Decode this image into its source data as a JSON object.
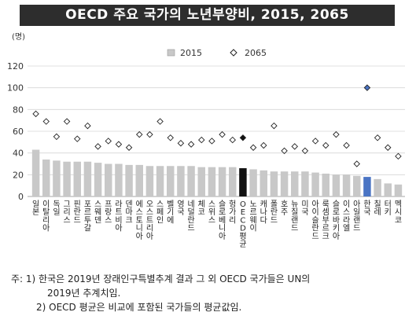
{
  "title": "OECD 주요 국가의 노년부양비, 2015, 2065",
  "chart_data": {
    "type": "bar",
    "ylabel": "(명)",
    "ylim": [
      0,
      120
    ],
    "yticks": [
      0,
      20,
      40,
      60,
      80,
      100,
      120
    ],
    "grid": true,
    "legend_position": "top-center",
    "series": [
      {
        "name": "2015",
        "kind": "bar",
        "color": "#c8c8c8"
      },
      {
        "name": "2065",
        "kind": "marker",
        "color": "#ffffff"
      }
    ],
    "categories": [
      "일본",
      "이탈리아",
      "독일",
      "그리스",
      "핀란드",
      "포르투갈",
      "스웨덴",
      "프랑스",
      "라트비아",
      "덴마크",
      "에스토니아",
      "오스트리아",
      "스페인",
      "벨기에",
      "영국",
      "네덜란드",
      "체코",
      "스위스",
      "슬로베니아",
      "헝가리",
      "OECD평균",
      "노르웨이",
      "캐나다",
      "폴란드",
      "호주",
      "뉴질랜드",
      "미국",
      "아이슬란드",
      "룩셈부르크",
      "슬로바키아",
      "이스라엘",
      "아일랜드",
      "한국",
      "칠레",
      "터키",
      "멕시코"
    ],
    "values_2015": [
      43,
      34,
      33,
      32,
      32,
      32,
      31,
      30,
      30,
      29,
      29,
      28,
      28,
      28,
      28,
      28,
      27,
      27,
      27,
      27,
      26,
      25,
      24,
      23,
      23,
      23,
      23,
      22,
      21,
      20,
      20,
      19,
      18,
      16,
      12,
      11
    ],
    "values_2065": [
      76,
      69,
      55,
      69,
      53,
      65,
      46,
      51,
      48,
      45,
      57,
      57,
      69,
      54,
      49,
      48,
      52,
      51,
      57,
      52,
      54,
      45,
      47,
      65,
      42,
      46,
      42,
      51,
      47,
      57,
      47,
      30,
      100,
      54,
      45,
      37
    ],
    "highlight": {
      "오이시디": "",
      "OECD평균": "#111111",
      "한국": "#4a74c4"
    }
  },
  "notes": {
    "line1": "주:  1)  한국은  2019년  장래인구특별추계  결과  그  외  OECD  국가들은  UN의",
    "line2": "2019년  추계치임.",
    "line3": "2)  OECD  평균은  비교에  포함된  국가들의  평균값임."
  }
}
